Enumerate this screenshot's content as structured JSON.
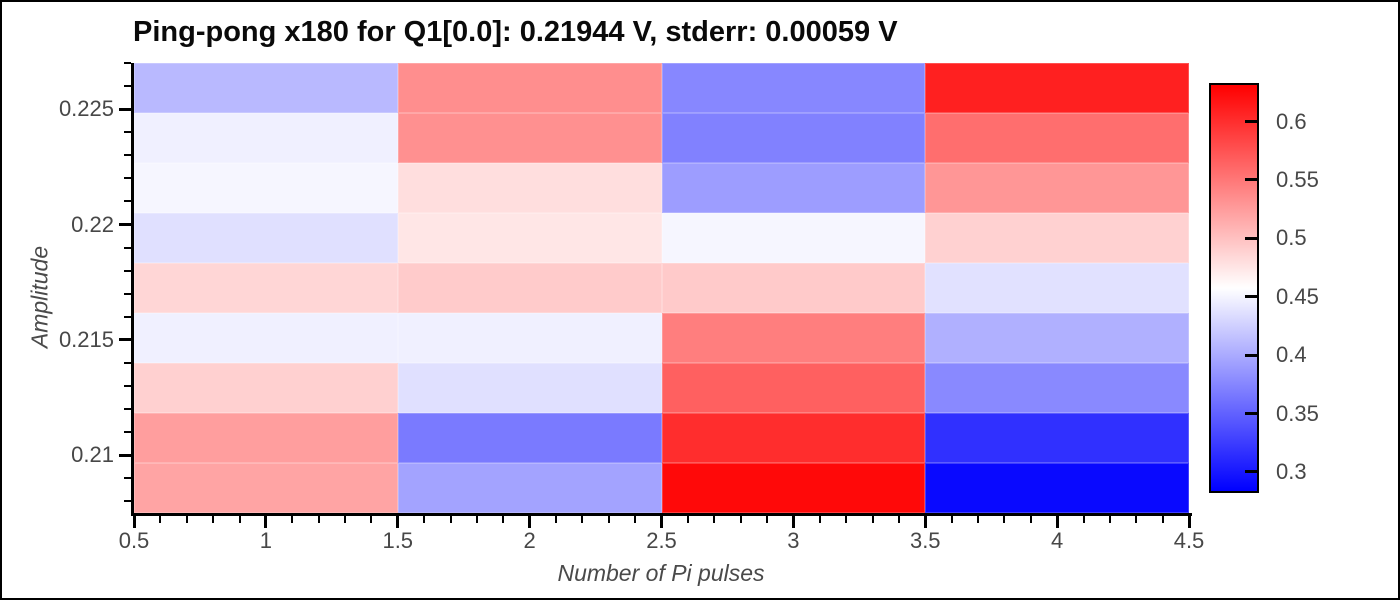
{
  "chart_data": {
    "type": "heatmap",
    "title": "Ping-pong x180 for Q1[0.0]: 0.21944 V, stderr: 0.00059 V",
    "xlabel": "Number of Pi pulses",
    "ylabel": "Amplitude",
    "x": [
      1,
      2,
      3,
      4
    ],
    "x_edges": [
      0.5,
      1.5,
      2.5,
      3.5,
      4.5
    ],
    "y_amplitudes_top_to_bottom": [
      0.226,
      0.2238,
      0.2216,
      0.2194,
      0.2172,
      0.2151,
      0.2129,
      0.2107,
      0.2085
    ],
    "values_rows_top_to_bottom": [
      [
        0.409,
        0.535,
        0.375,
        0.611
      ],
      [
        0.447,
        0.534,
        0.371,
        0.557
      ],
      [
        0.451,
        0.48,
        0.39,
        0.53
      ],
      [
        0.436,
        0.475,
        0.451,
        0.489
      ],
      [
        0.486,
        0.493,
        0.494,
        0.437
      ],
      [
        0.447,
        0.447,
        0.546,
        0.403
      ],
      [
        0.49,
        0.436,
        0.567,
        0.376
      ],
      [
        0.524,
        0.366,
        0.602,
        0.315
      ],
      [
        0.52,
        0.394,
        0.627,
        0.288
      ]
    ],
    "xlim": [
      0.5,
      4.5
    ],
    "ylim": [
      0.2075,
      0.227
    ],
    "x_major_ticks": [
      0.5,
      1,
      1.5,
      2,
      2.5,
      3,
      3.5,
      4,
      4.5
    ],
    "x_tick_labels": [
      "0.5",
      "1",
      "1.5",
      "2",
      "2.5",
      "3",
      "3.5",
      "4",
      "4.5"
    ],
    "x_minor_step": 0.1,
    "y_major_ticks": [
      0.225,
      0.22,
      0.215,
      0.21
    ],
    "y_tick_labels": [
      "0.225",
      "0.22",
      "0.215",
      "0.21"
    ],
    "y_minor_step": 0.001,
    "colormap": "bwr",
    "vmin": 0.282,
    "vmax": 0.633,
    "colorbar_ticks": [
      0.6,
      0.55,
      0.5,
      0.45,
      0.4,
      0.35,
      0.3
    ],
    "colorbar_tick_labels": [
      "0.6",
      "0.55",
      "0.5",
      "0.45",
      "0.4",
      "0.35",
      "0.3"
    ],
    "grid": false,
    "legend_position": "colorbar-right"
  },
  "colors": {
    "blue_end": "#0000ff",
    "white_mid": "#ffffff",
    "red_end": "#ff0000",
    "spine": "#000000",
    "tick_label": "#474747",
    "title": "#0a0a0a",
    "background": "#ffffff"
  }
}
